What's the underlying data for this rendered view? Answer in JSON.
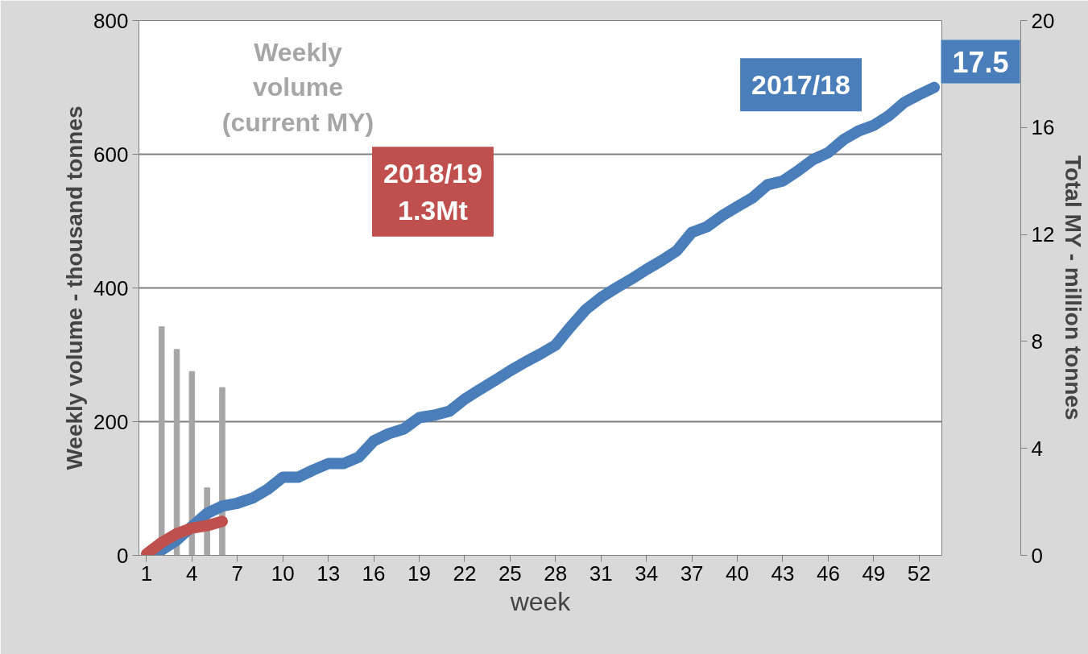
{
  "chart_data": {
    "type": "line",
    "xlabel": "week",
    "ylabel": "Weekly volume - thousand tonnes",
    "y2label": "Total MY - million tonnes",
    "x": [
      1,
      2,
      3,
      4,
      5,
      6,
      7,
      8,
      9,
      10,
      11,
      12,
      13,
      14,
      15,
      16,
      17,
      18,
      19,
      20,
      21,
      22,
      23,
      24,
      25,
      26,
      27,
      28,
      29,
      30,
      31,
      32,
      33,
      34,
      35,
      36,
      37,
      38,
      39,
      40,
      41,
      42,
      43,
      44,
      45,
      46,
      47,
      48,
      49,
      50,
      51,
      52,
      53
    ],
    "xlim": [
      0.5,
      53.5
    ],
    "xticks": [
      1,
      4,
      7,
      10,
      13,
      16,
      19,
      22,
      25,
      28,
      31,
      34,
      37,
      40,
      43,
      46,
      49,
      52
    ],
    "ylim": [
      0,
      800
    ],
    "yticks": [
      0,
      200,
      400,
      600,
      800
    ],
    "y2lim": [
      0,
      20
    ],
    "y2ticks": [
      0,
      4,
      8,
      12,
      16,
      20
    ],
    "grid": "y",
    "annotations": [
      "1.3Mt"
    ],
    "series": [
      {
        "name": "Weekly volume (current MY)",
        "type": "bar",
        "color": "#a6a6a6",
        "x": [
          2,
          3,
          4,
          5,
          6
        ],
        "values": [
          342,
          308,
          275,
          101,
          251
        ]
      },
      {
        "name": "2017/18",
        "axis": "y2",
        "color": "#4a7ebb",
        "values": [
          0,
          0.2,
          0.57,
          1.08,
          1.57,
          1.84,
          1.95,
          2.14,
          2.47,
          2.92,
          2.92,
          3.19,
          3.43,
          3.43,
          3.67,
          4.28,
          4.55,
          4.73,
          5.15,
          5.24,
          5.39,
          5.84,
          6.2,
          6.54,
          6.9,
          7.23,
          7.53,
          7.86,
          8.55,
          9.19,
          9.64,
          10.0,
          10.33,
          10.69,
          11.02,
          11.39,
          12.08,
          12.29,
          12.7,
          13.04,
          13.37,
          13.86,
          14.0,
          14.38,
          14.8,
          15.06,
          15.54,
          15.87,
          16.08,
          16.44,
          16.93,
          17.23,
          17.5
        ],
        "value_labels": [
          null,
          null,
          null,
          null,
          null,
          null,
          null,
          null,
          null,
          null,
          null,
          null,
          null,
          null,
          null,
          null,
          null,
          null,
          null,
          null,
          null,
          null,
          null,
          null,
          null,
          null,
          null,
          null,
          null,
          null,
          null,
          null,
          null,
          null,
          null,
          null,
          null,
          null,
          null,
          null,
          null,
          null,
          null,
          null,
          null,
          null,
          null,
          null,
          null,
          null,
          null,
          null,
          "17.5"
        ]
      },
      {
        "name": "2018/19",
        "type": "line",
        "axis": "y2",
        "color": "#c0504d",
        "x": [
          1,
          2,
          3,
          4,
          5,
          6
        ],
        "values": [
          0.05,
          0.48,
          0.81,
          1.02,
          1.11,
          1.27
        ]
      }
    ]
  }
}
